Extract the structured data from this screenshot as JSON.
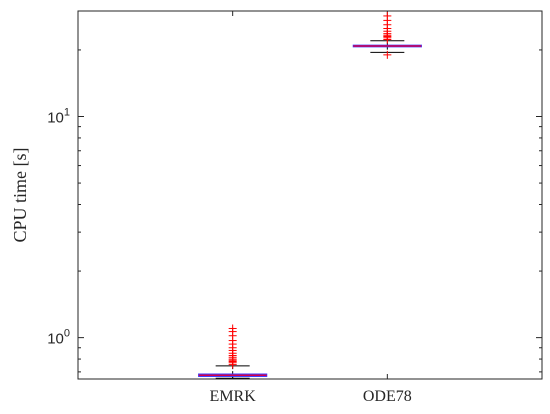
{
  "chart_data": {
    "type": "boxplot",
    "ylabel": "CPU time [s]",
    "yscale": "log",
    "ylim": [
      0.65,
      30
    ],
    "yticks": [
      {
        "value": 1,
        "base": "10",
        "exp": "0"
      },
      {
        "value": 10,
        "base": "10",
        "exp": "1"
      }
    ],
    "categories": [
      "EMRK",
      "ODE78"
    ],
    "box_color": "#3b3bff",
    "median_color": "#d4004a",
    "outlier_color": "#ff0000",
    "whisker_color": "#000000",
    "boxes": [
      {
        "category": "EMRK",
        "whisker_low": 0.655,
        "q1": 0.668,
        "median": 0.676,
        "q3": 0.684,
        "whisker_high": 0.745,
        "outliers": [
          0.755,
          0.77,
          0.78,
          0.79,
          0.8,
          0.815,
          0.83,
          0.85,
          0.875,
          0.9,
          0.935,
          0.97,
          1.02,
          1.065,
          1.1
        ]
      },
      {
        "category": "ODE78",
        "whisker_low": 19.5,
        "q1": 20.7,
        "median": 20.85,
        "q3": 21.0,
        "whisker_high": 22.0,
        "outliers": [
          19.0,
          22.3,
          22.7,
          23.0,
          23.3,
          23.7,
          24.3,
          25.0,
          26.0,
          27.2,
          28.5
        ]
      }
    ]
  }
}
